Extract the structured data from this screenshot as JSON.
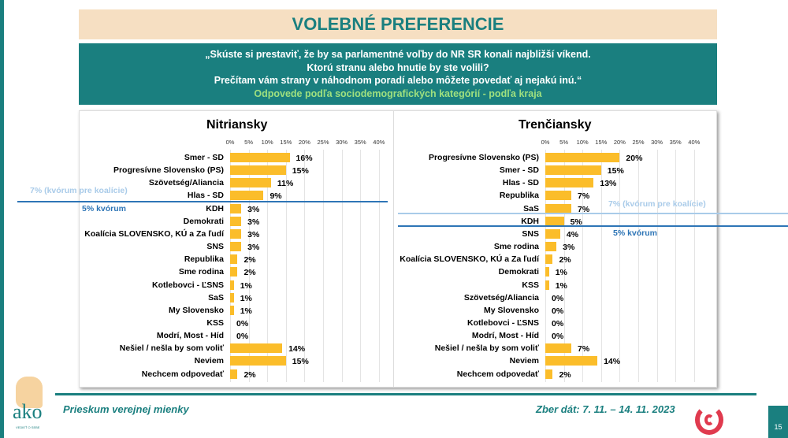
{
  "title": "VOLEBNÉ PREFERENCIE",
  "question": [
    "„Skúste si prestaviť, že by sa parlamentné voľby do NR SR konali najbližší víkend.",
    "Ktorú stranu alebo hnutie by ste volili?",
    "Prečítam vám strany v náhodnom poradí alebo môžete povedať aj nejakú inú.“"
  ],
  "subtitle": "Odpovede podľa sociodemografických kategórií - podľa kraja",
  "quorum_coalition": "7% (kvórum pre koalície)",
  "quorum": "5% kvórum",
  "footer": {
    "left": "Prieskum verejnej mienky",
    "right": "Zber dát: 7. 11. – 14. 11. 2023",
    "page": "15",
    "logo": "ako",
    "logo_tag": "VEDIEŤ O SEBE"
  },
  "colors": {
    "bar": "#fbbd2a",
    "teal": "#1a7f7f",
    "quorum": "#2e75b6",
    "quorum_coalition": "#a9cbe9"
  },
  "chart_data": [
    {
      "type": "bar",
      "title": "Nitriansky",
      "xlim": [
        0,
        40
      ],
      "ticks": [
        "0%",
        "5%",
        "10%",
        "15%",
        "20%",
        "25%",
        "30%",
        "35%",
        "40%"
      ],
      "categories": [
        "Smer - SD",
        "Progresívne Slovensko (PS)",
        "Szövetség/Aliancia",
        "Hlas - SD",
        "KDH",
        "Demokrati",
        "Koalícia SLOVENSKO, KÚ a Za ľudí",
        "SNS",
        "Republika",
        "Sme rodina",
        "Kotlebovci - ĽSNS",
        "SaS",
        "My Slovensko",
        "KSS",
        "Modrí, Most - Híd",
        "Nešiel / nešla by som voliť",
        "Neviem",
        "Nechcem odpovedať"
      ],
      "values": [
        16,
        15,
        11,
        9,
        3,
        3,
        3,
        3,
        2,
        2,
        1,
        1,
        1,
        0,
        0,
        14,
        15,
        2
      ]
    },
    {
      "type": "bar",
      "title": "Trenčiansky",
      "xlim": [
        0,
        40
      ],
      "ticks": [
        "0%",
        "5%",
        "10%",
        "15%",
        "20%",
        "25%",
        "30%",
        "35%",
        "40%"
      ],
      "categories": [
        "Progresívne Slovensko (PS)",
        "Smer - SD",
        "Hlas - SD",
        "Republika",
        "SaS",
        "KDH",
        "SNS",
        "Sme rodina",
        "Koalícia SLOVENSKO, KÚ a Za ľudí",
        "Demokrati",
        "KSS",
        "Szövetség/Aliancia",
        "My Slovensko",
        "Kotlebovci - ĽSNS",
        "Modrí, Most - Híd",
        "Nešiel / nešla by som voliť",
        "Neviem",
        "Nechcem odpovedať"
      ],
      "values": [
        20,
        15,
        13,
        7,
        7,
        5,
        4,
        3,
        2,
        1,
        1,
        0,
        0,
        0,
        0,
        7,
        14,
        2
      ]
    }
  ]
}
